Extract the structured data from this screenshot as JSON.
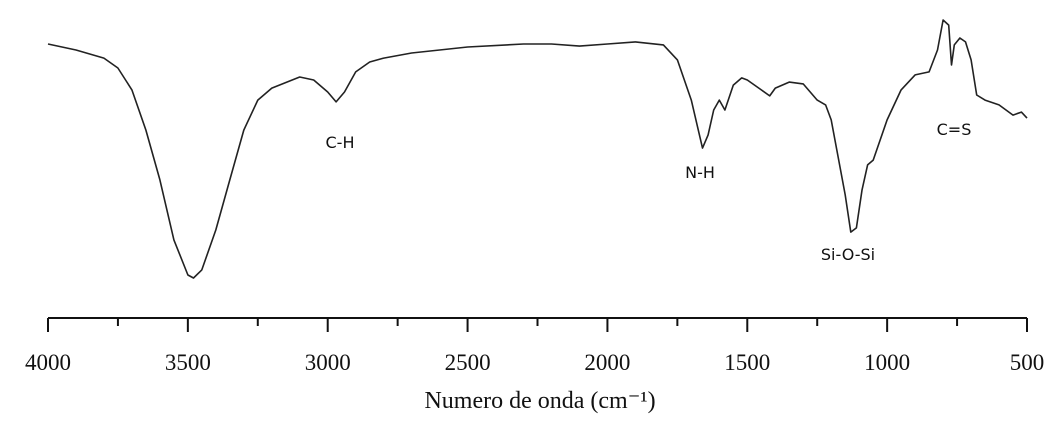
{
  "chart_data": {
    "type": "line",
    "x_label": "Numero de onda (cm⁻¹)",
    "xlim": [
      4000,
      500
    ],
    "xticks": [
      4000,
      3500,
      3000,
      2500,
      2000,
      1500,
      1000,
      500
    ],
    "xticks_minor": [
      3750,
      3250,
      2750,
      2250,
      1750,
      1250,
      750
    ],
    "ylim": [
      0,
      100
    ],
    "color": "#222222",
    "x": [
      4000,
      3900,
      3800,
      3750,
      3700,
      3650,
      3600,
      3550,
      3500,
      3480,
      3450,
      3400,
      3350,
      3300,
      3250,
      3200,
      3100,
      3050,
      3000,
      2970,
      2940,
      2900,
      2850,
      2800,
      2700,
      2500,
      2300,
      2200,
      2100,
      2000,
      1900,
      1800,
      1750,
      1700,
      1660,
      1640,
      1620,
      1600,
      1580,
      1550,
      1520,
      1500,
      1450,
      1420,
      1400,
      1350,
      1300,
      1250,
      1220,
      1200,
      1180,
      1150,
      1130,
      1110,
      1090,
      1070,
      1050,
      1000,
      950,
      900,
      850,
      820,
      800,
      780,
      770,
      760,
      740,
      720,
      700,
      680,
      650,
      600,
      550,
      520,
      500
    ],
    "values": [
      92,
      90,
      87.3,
      84,
      76.7,
      63.3,
      46.7,
      26.7,
      15,
      14,
      16.7,
      30,
      46.7,
      63.3,
      73.3,
      77.3,
      81,
      80,
      76,
      72.7,
      76,
      82.7,
      86,
      87.3,
      89,
      91,
      92,
      92,
      91.3,
      92,
      92.7,
      91.7,
      86.7,
      73.3,
      57.3,
      61.7,
      70,
      73.3,
      70,
      78.3,
      80.7,
      80,
      76.7,
      74.7,
      77.3,
      79.3,
      78.7,
      73.3,
      71.7,
      66.7,
      56.7,
      41.7,
      29.3,
      30.7,
      43.3,
      51.7,
      53.3,
      66.7,
      76.7,
      81.7,
      82.7,
      90,
      100,
      98.3,
      85,
      91.7,
      94,
      92.7,
      86.7,
      75,
      73.3,
      71.7,
      68.3,
      69.3,
      67.3
    ],
    "annotations": [
      "C-H",
      "N-H",
      "Si-O-Si",
      "C=S"
    ]
  }
}
